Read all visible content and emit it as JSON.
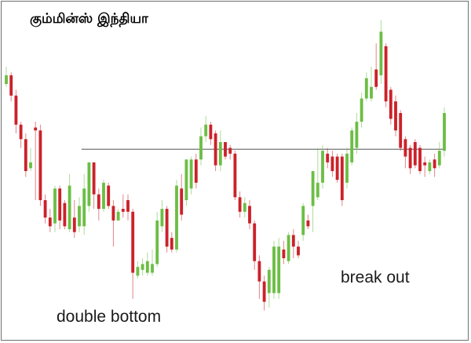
{
  "title": "கும்மின்ஸ் இந்தியா",
  "chart_data": {
    "type": "candlestick",
    "title": "கும்மின்ஸ் இந்தியா",
    "xlabel": "",
    "ylabel": "",
    "ylim": [
      0,
      100
    ],
    "grid": false,
    "colors": {
      "up": "#6cbe45",
      "down": "#cc2129",
      "level": "#8a8a8a"
    },
    "candles": [
      {
        "o": 80,
        "c": 83,
        "h": 86,
        "l": 79
      },
      {
        "o": 83,
        "c": 76,
        "h": 84,
        "l": 74
      },
      {
        "o": 76,
        "c": 66,
        "h": 78,
        "l": 63
      },
      {
        "o": 66,
        "c": 61,
        "h": 67,
        "l": 58
      },
      {
        "o": 61,
        "c": 50,
        "h": 63,
        "l": 48
      },
      {
        "o": 51,
        "c": 53,
        "h": 58,
        "l": 50
      },
      {
        "o": 65,
        "c": 64,
        "h": 67,
        "l": 40
      },
      {
        "o": 64,
        "c": 40,
        "h": 66,
        "l": 38
      },
      {
        "o": 40,
        "c": 34,
        "h": 42,
        "l": 32
      },
      {
        "o": 34,
        "c": 31,
        "h": 37,
        "l": 29
      },
      {
        "o": 32,
        "c": 44,
        "h": 45,
        "l": 29
      },
      {
        "o": 44,
        "c": 33,
        "h": 45,
        "l": 30
      },
      {
        "o": 39,
        "c": 31,
        "h": 40,
        "l": 30
      },
      {
        "o": 30,
        "c": 45,
        "h": 49,
        "l": 29
      },
      {
        "o": 34,
        "c": 29,
        "h": 40,
        "l": 27
      },
      {
        "o": 31,
        "c": 38,
        "h": 41,
        "l": 29
      },
      {
        "o": 31,
        "c": 44,
        "h": 49,
        "l": 28
      },
      {
        "o": 38,
        "c": 53,
        "h": 53,
        "l": 36
      },
      {
        "o": 53,
        "c": 42,
        "h": 53,
        "l": 37
      },
      {
        "o": 42,
        "c": 37,
        "h": 44,
        "l": 33
      },
      {
        "o": 37,
        "c": 46,
        "h": 47,
        "l": 36
      },
      {
        "o": 45,
        "c": 38,
        "h": 46,
        "l": 37
      },
      {
        "o": 38,
        "c": 33,
        "h": 40,
        "l": 24
      },
      {
        "o": 33,
        "c": 36,
        "h": 37,
        "l": 33
      },
      {
        "o": 37,
        "c": 36,
        "h": 42,
        "l": 34
      },
      {
        "o": 40,
        "c": 36,
        "h": 42,
        "l": 33
      },
      {
        "o": 36,
        "c": 15,
        "h": 37,
        "l": 6
      },
      {
        "o": 14,
        "c": 17,
        "h": 19,
        "l": 13
      },
      {
        "o": 16,
        "c": 18,
        "h": 20,
        "l": 14
      },
      {
        "o": 15,
        "c": 19,
        "h": 22,
        "l": 14
      },
      {
        "o": 15,
        "c": 18,
        "h": 23,
        "l": 14
      },
      {
        "o": 18,
        "c": 33,
        "h": 36,
        "l": 17
      },
      {
        "o": 31,
        "c": 37,
        "h": 40,
        "l": 29
      },
      {
        "o": 37,
        "c": 24,
        "h": 38,
        "l": 22
      },
      {
        "o": 27,
        "c": 23,
        "h": 29,
        "l": 22
      },
      {
        "o": 23,
        "c": 45,
        "h": 47,
        "l": 22
      },
      {
        "o": 44,
        "c": 35,
        "h": 49,
        "l": 33
      },
      {
        "o": 40,
        "c": 54,
        "h": 54,
        "l": 38
      },
      {
        "o": 44,
        "c": 54,
        "h": 55,
        "l": 42
      },
      {
        "o": 54,
        "c": 46,
        "h": 56,
        "l": 44
      },
      {
        "o": 54,
        "c": 62,
        "h": 65,
        "l": 52
      },
      {
        "o": 62,
        "c": 66,
        "h": 69,
        "l": 60
      },
      {
        "o": 66,
        "c": 61,
        "h": 67,
        "l": 59
      },
      {
        "o": 63,
        "c": 52,
        "h": 64,
        "l": 50
      },
      {
        "o": 52,
        "c": 60,
        "h": 64,
        "l": 50
      },
      {
        "o": 60,
        "c": 55,
        "h": 60,
        "l": 54
      },
      {
        "o": 58,
        "c": 56,
        "h": 59,
        "l": 54
      },
      {
        "o": 56,
        "c": 41,
        "h": 57,
        "l": 40
      },
      {
        "o": 41,
        "c": 36,
        "h": 43,
        "l": 34
      },
      {
        "o": 36,
        "c": 39,
        "h": 41,
        "l": 34
      },
      {
        "o": 38,
        "c": 32,
        "h": 40,
        "l": 30
      },
      {
        "o": 32,
        "c": 19,
        "h": 33,
        "l": 16
      },
      {
        "o": 19,
        "c": 12,
        "h": 21,
        "l": 6
      },
      {
        "o": 12,
        "c": 5,
        "h": 14,
        "l": 2
      },
      {
        "o": 8,
        "c": 16,
        "h": 17,
        "l": 3
      },
      {
        "o": 8,
        "c": 24,
        "h": 26,
        "l": 6
      },
      {
        "o": 8,
        "c": 24,
        "h": 27,
        "l": 6
      },
      {
        "o": 23,
        "c": 20,
        "h": 26,
        "l": 18
      },
      {
        "o": 19,
        "c": 28,
        "h": 29,
        "l": 18
      },
      {
        "o": 28,
        "c": 24,
        "h": 30,
        "l": 20
      },
      {
        "o": 24,
        "c": 21,
        "h": 26,
        "l": 20
      },
      {
        "o": 28,
        "c": 38,
        "h": 39,
        "l": 26
      },
      {
        "o": 33,
        "c": 31,
        "h": 35,
        "l": 30
      },
      {
        "o": 38,
        "c": 50,
        "h": 50,
        "l": 29
      },
      {
        "o": 41,
        "c": 46,
        "h": 58,
        "l": 40
      },
      {
        "o": 46,
        "c": 57,
        "h": 59,
        "l": 44
      },
      {
        "o": 56,
        "c": 53,
        "h": 58,
        "l": 51
      },
      {
        "o": 55,
        "c": 50,
        "h": 57,
        "l": 48
      },
      {
        "o": 55,
        "c": 47,
        "h": 56,
        "l": 46
      },
      {
        "o": 55,
        "c": 40,
        "h": 56,
        "l": 38
      },
      {
        "o": 46,
        "c": 56,
        "h": 58,
        "l": 44
      },
      {
        "o": 53,
        "c": 64,
        "h": 65,
        "l": 52
      },
      {
        "o": 58,
        "c": 67,
        "h": 70,
        "l": 56
      },
      {
        "o": 67,
        "c": 75,
        "h": 77,
        "l": 65
      },
      {
        "o": 75,
        "c": 82,
        "h": 84,
        "l": 74
      },
      {
        "o": 75,
        "c": 79,
        "h": 86,
        "l": 74
      },
      {
        "o": 85,
        "c": 79,
        "h": 94,
        "l": 78
      },
      {
        "o": 83,
        "c": 98,
        "h": 102,
        "l": 80
      },
      {
        "o": 93,
        "c": 74,
        "h": 94,
        "l": 72
      },
      {
        "o": 78,
        "c": 68,
        "h": 79,
        "l": 66
      },
      {
        "o": 74,
        "c": 64,
        "h": 76,
        "l": 62
      },
      {
        "o": 70,
        "c": 58,
        "h": 71,
        "l": 57
      },
      {
        "o": 61,
        "c": 55,
        "h": 62,
        "l": 51
      },
      {
        "o": 58,
        "c": 51,
        "h": 59,
        "l": 49
      },
      {
        "o": 60,
        "c": 52,
        "h": 61,
        "l": 51
      },
      {
        "o": 58,
        "c": 50,
        "h": 59,
        "l": 49
      },
      {
        "o": 53,
        "c": 52,
        "h": 55,
        "l": 48
      },
      {
        "o": 50,
        "c": 53,
        "h": 54,
        "l": 49
      },
      {
        "o": 54,
        "c": 51,
        "h": 56,
        "l": 48
      },
      {
        "o": 52,
        "c": 57,
        "h": 60,
        "l": 51
      },
      {
        "o": 57,
        "c": 70,
        "h": 72,
        "l": 55
      }
    ],
    "resistance_level": 57.5,
    "annotations": [
      {
        "text": "double bottom"
      },
      {
        "text": "break out"
      }
    ]
  }
}
